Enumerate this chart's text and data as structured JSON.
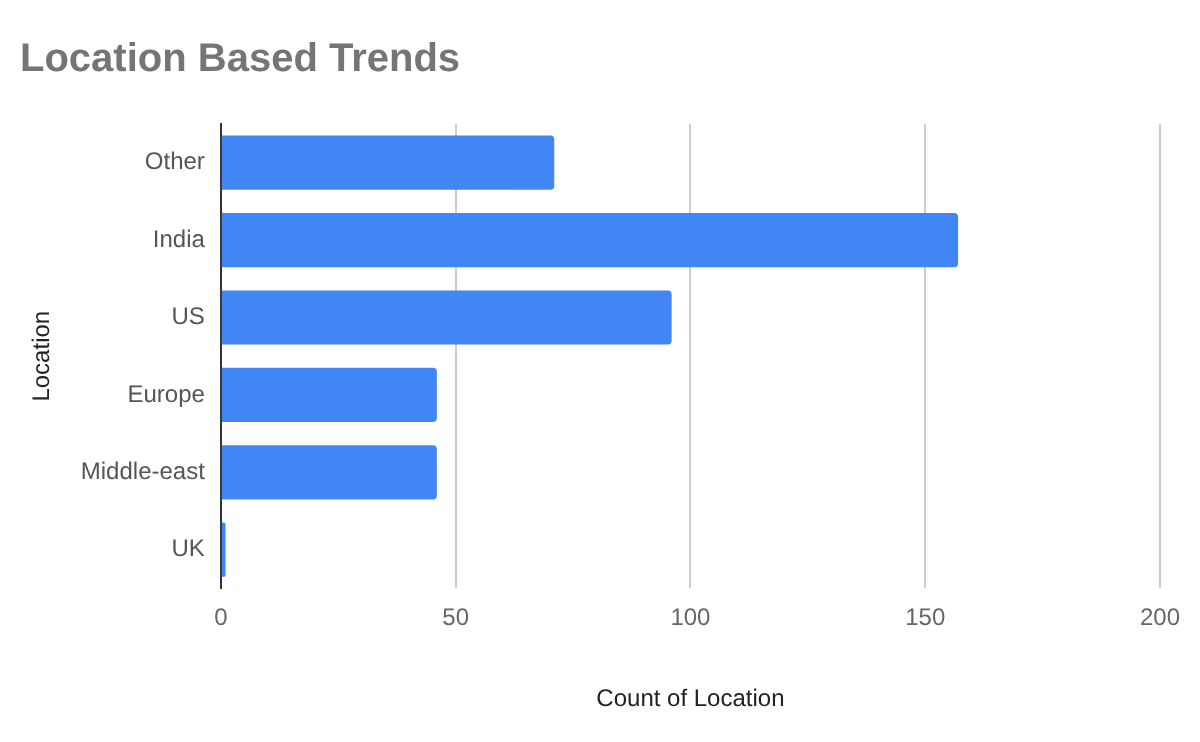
{
  "chart_data": {
    "type": "bar",
    "orientation": "horizontal",
    "title": "Location Based Trends",
    "xlabel": "Count of Location",
    "ylabel": "Location",
    "categories": [
      "Other",
      "India",
      "US",
      "Europe",
      "Middle-east",
      "UK"
    ],
    "values": [
      71,
      157,
      96,
      46,
      46,
      1
    ],
    "color": "#4285f4",
    "xlim": [
      0,
      200
    ],
    "xticks": [
      0,
      50,
      100,
      150,
      200
    ],
    "grid": "x"
  }
}
